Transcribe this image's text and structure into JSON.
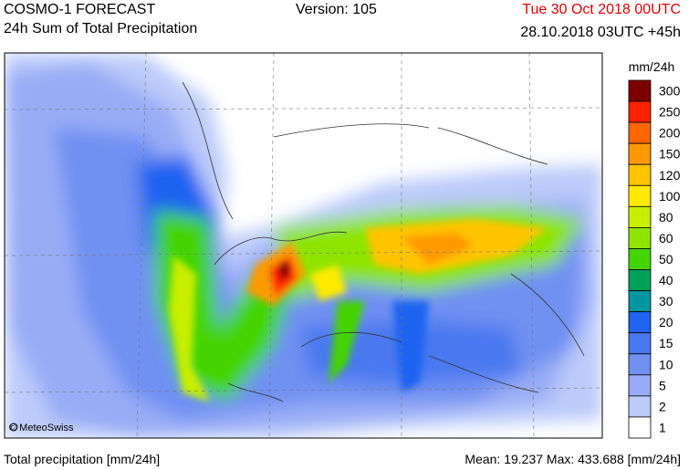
{
  "header": {
    "title": "COSMO-1 FORECAST",
    "subtitle": "24h Sum of Total Precipitation",
    "version": "Version: 105",
    "valid": "Tue 30 Oct 2018 00UTC",
    "run": "28.10.2018 03UTC +45h"
  },
  "legend": {
    "unit": "mm/24h",
    "levels": [
      {
        "label": "300",
        "color": "#7d0000"
      },
      {
        "label": "250",
        "color": "#ff2000"
      },
      {
        "label": "200",
        "color": "#ff6600"
      },
      {
        "label": "150",
        "color": "#ff9900"
      },
      {
        "label": "120",
        "color": "#ffc400"
      },
      {
        "label": "100",
        "color": "#ffea00"
      },
      {
        "label": "80",
        "color": "#c8ee00"
      },
      {
        "label": "60",
        "color": "#8ee400"
      },
      {
        "label": "50",
        "color": "#44d400"
      },
      {
        "label": "40",
        "color": "#00a05a"
      },
      {
        "label": "30",
        "color": "#0096a0"
      },
      {
        "label": "20",
        "color": "#1e64f0"
      },
      {
        "label": "15",
        "color": "#4a78f0"
      },
      {
        "label": "10",
        "color": "#7090f2"
      },
      {
        "label": "5",
        "color": "#98acf6"
      },
      {
        "label": "2",
        "color": "#bccbfa"
      },
      {
        "label": "1",
        "color": "#ffffff"
      }
    ]
  },
  "map": {
    "copyright": "© MeteoSwiss"
  },
  "footer": {
    "left": "Total precipitation [mm/24h]",
    "right": "Mean:  19.237 Max: 433.688 [mm/24h]"
  }
}
